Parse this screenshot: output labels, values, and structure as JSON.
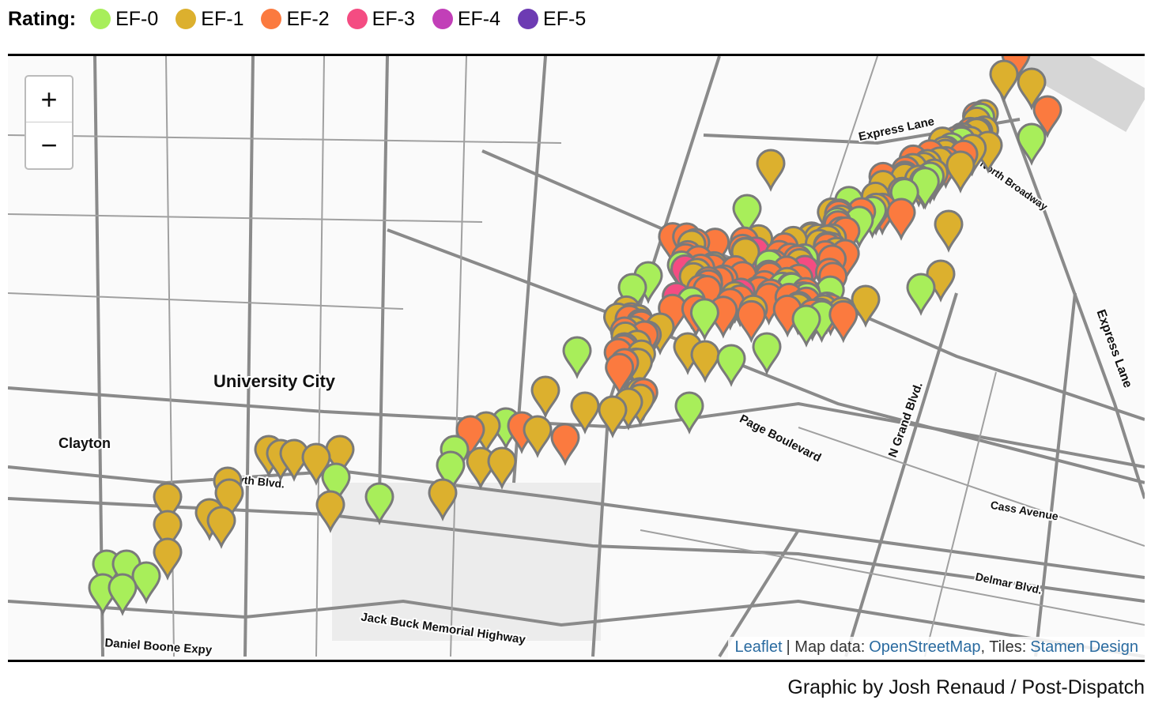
{
  "legend": {
    "title": "Rating:",
    "items": [
      {
        "label": "EF-0",
        "color": "#a8ee5a"
      },
      {
        "label": "EF-1",
        "color": "#dcb02e"
      },
      {
        "label": "EF-2",
        "color": "#fb7a3f"
      },
      {
        "label": "EF-3",
        "color": "#f44c82"
      },
      {
        "label": "EF-4",
        "color": "#c23fb8"
      },
      {
        "label": "EF-5",
        "color": "#6d3bb3"
      }
    ]
  },
  "zoom": {
    "in": "+",
    "out": "−"
  },
  "map_labels": [
    "University City",
    "Clayton",
    "Forsyth Blvd.",
    "Page Boulevard",
    "N Grand Blvd.",
    "Cass Avenue",
    "Delmar Blvd.",
    "Jack Buck Memorial Highway",
    "Daniel Boone Expy",
    "Express Lane",
    "North Broadway",
    "Express Lane"
  ],
  "attribution": {
    "leaflet": "Leaflet",
    "map_data": "| Map data:",
    "osm": "OpenStreetMap",
    "tiles": ", Tiles:",
    "stamen": "Stamen Design"
  },
  "credit": "Graphic by Josh Renaud / Post-Dispatch"
}
